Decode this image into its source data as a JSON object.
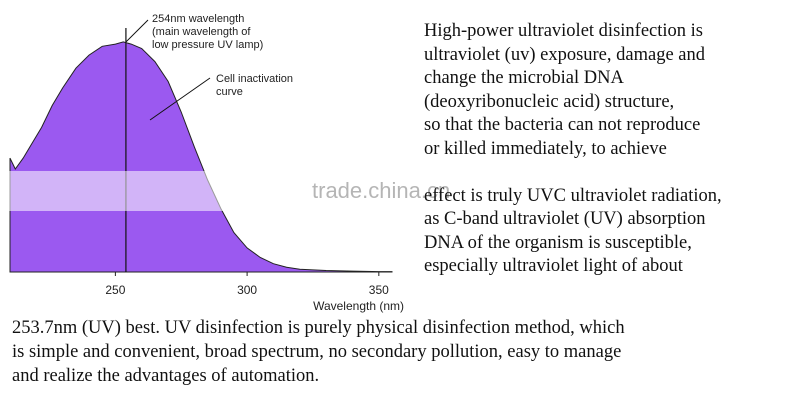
{
  "chart_data": {
    "type": "area",
    "title": "",
    "xlabel": "Wavelength (nm)",
    "ylabel": "",
    "xlim": [
      210,
      355
    ],
    "ylim": [
      0,
      1.15
    ],
    "x_ticks": [
      250,
      300,
      350
    ],
    "x": [
      210,
      212,
      215,
      218,
      222,
      226,
      230,
      235,
      240,
      245,
      250,
      253,
      256,
      260,
      265,
      270,
      275,
      280,
      285,
      290,
      295,
      300,
      305,
      310,
      315,
      320,
      330,
      340,
      350,
      355
    ],
    "values": [
      0.52,
      0.47,
      0.52,
      0.58,
      0.66,
      0.76,
      0.84,
      0.93,
      0.99,
      1.03,
      1.04,
      1.05,
      1.04,
      1.02,
      0.96,
      0.87,
      0.73,
      0.57,
      0.42,
      0.29,
      0.18,
      0.11,
      0.066,
      0.038,
      0.022,
      0.013,
      0.007,
      0.004,
      0.002,
      0.002
    ],
    "fill_color": "#9b59f0",
    "marker_line_x": 254,
    "annotations": [
      {
        "id": "wavelength",
        "lines": [
          "254nm wavelength",
          "(main wavelength of",
          "low pressure UV lamp)"
        ]
      },
      {
        "id": "curve",
        "lines": [
          "Cell inactivation",
          "curve"
        ]
      }
    ]
  },
  "right_text": [
    "High-power ultraviolet disinfection is",
    "ultraviolet (uv) exposure, damage and",
    "change the microbial DNA",
    "(deoxyribonucleic acid) structure,",
    "so that the bacteria can not reproduce",
    " or killed immediately, to achieve",
    "",
    "effect is truly UVC ultraviolet radiation,",
    "as C-band ultraviolet (UV) absorption",
    "DNA of the organism is susceptible,",
    "especially ultraviolet light of about"
  ],
  "bottom_text": [
    "253.7nm (UV) best. UV disinfection is purely physical disinfection method, which",
    "is simple and convenient, broad spectrum, no secondary pollution, easy to manage",
    "and realize the advantages of automation."
  ],
  "watermark": "trade.china.cn"
}
